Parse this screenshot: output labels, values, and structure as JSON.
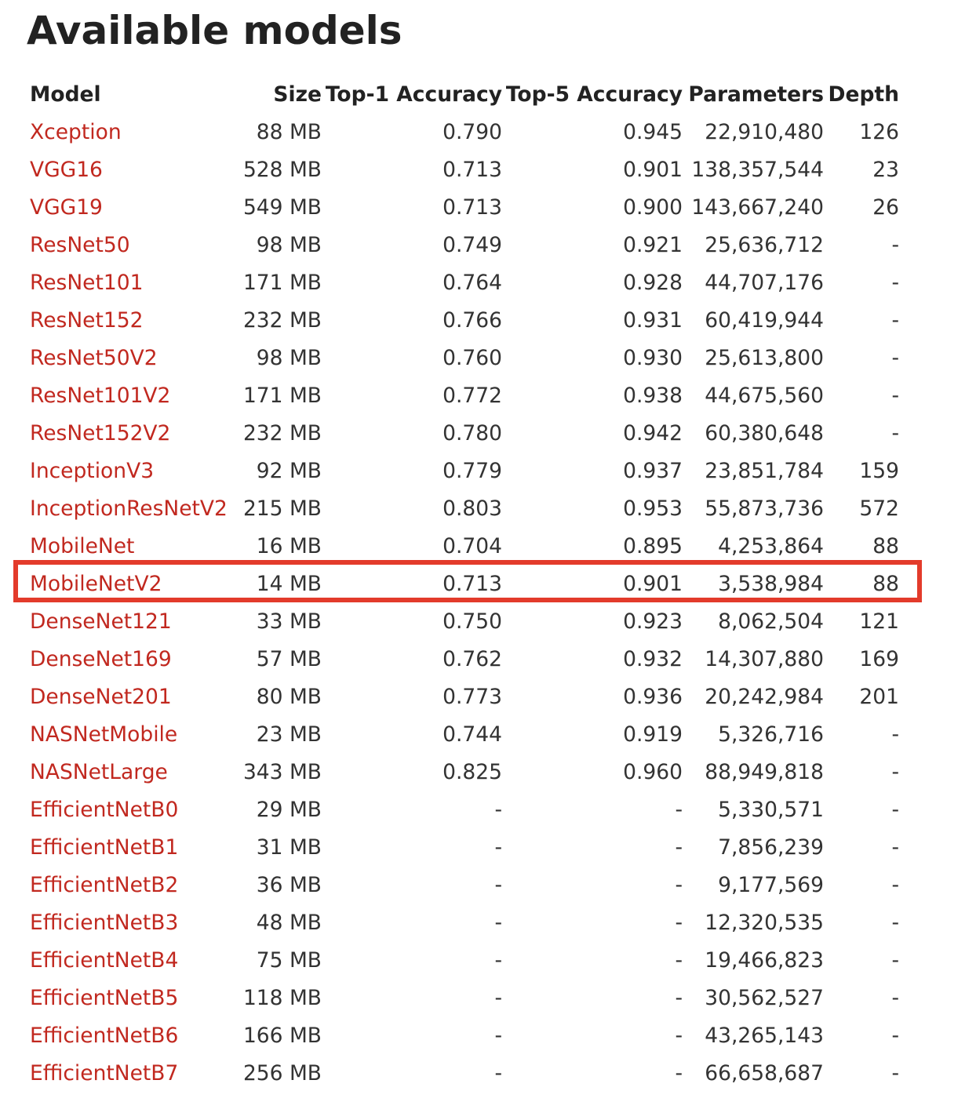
{
  "page": {
    "title": "Available models"
  },
  "table": {
    "headers": {
      "model": "Model",
      "size": "Size",
      "top1": "Top-1 Accuracy",
      "top5": "Top-5 Accuracy",
      "parameters": "Parameters",
      "depth": "Depth"
    },
    "rows": [
      {
        "model": "Xception",
        "size": "88 MB",
        "top1": "0.790",
        "top5": "0.945",
        "parameters": "22,910,480",
        "depth": "126"
      },
      {
        "model": "VGG16",
        "size": "528 MB",
        "top1": "0.713",
        "top5": "0.901",
        "parameters": "138,357,544",
        "depth": "23"
      },
      {
        "model": "VGG19",
        "size": "549 MB",
        "top1": "0.713",
        "top5": "0.900",
        "parameters": "143,667,240",
        "depth": "26"
      },
      {
        "model": "ResNet50",
        "size": "98 MB",
        "top1": "0.749",
        "top5": "0.921",
        "parameters": "25,636,712",
        "depth": "-"
      },
      {
        "model": "ResNet101",
        "size": "171 MB",
        "top1": "0.764",
        "top5": "0.928",
        "parameters": "44,707,176",
        "depth": "-"
      },
      {
        "model": "ResNet152",
        "size": "232 MB",
        "top1": "0.766",
        "top5": "0.931",
        "parameters": "60,419,944",
        "depth": "-"
      },
      {
        "model": "ResNet50V2",
        "size": "98 MB",
        "top1": "0.760",
        "top5": "0.930",
        "parameters": "25,613,800",
        "depth": "-"
      },
      {
        "model": "ResNet101V2",
        "size": "171 MB",
        "top1": "0.772",
        "top5": "0.938",
        "parameters": "44,675,560",
        "depth": "-"
      },
      {
        "model": "ResNet152V2",
        "size": "232 MB",
        "top1": "0.780",
        "top5": "0.942",
        "parameters": "60,380,648",
        "depth": "-"
      },
      {
        "model": "InceptionV3",
        "size": "92 MB",
        "top1": "0.779",
        "top5": "0.937",
        "parameters": "23,851,784",
        "depth": "159"
      },
      {
        "model": "InceptionResNetV2",
        "size": "215 MB",
        "top1": "0.803",
        "top5": "0.953",
        "parameters": "55,873,736",
        "depth": "572"
      },
      {
        "model": "MobileNet",
        "size": "16 MB",
        "top1": "0.704",
        "top5": "0.895",
        "parameters": "4,253,864",
        "depth": "88"
      },
      {
        "model": "MobileNetV2",
        "size": "14 MB",
        "top1": "0.713",
        "top5": "0.901",
        "parameters": "3,538,984",
        "depth": "88"
      },
      {
        "model": "DenseNet121",
        "size": "33 MB",
        "top1": "0.750",
        "top5": "0.923",
        "parameters": "8,062,504",
        "depth": "121"
      },
      {
        "model": "DenseNet169",
        "size": "57 MB",
        "top1": "0.762",
        "top5": "0.932",
        "parameters": "14,307,880",
        "depth": "169"
      },
      {
        "model": "DenseNet201",
        "size": "80 MB",
        "top1": "0.773",
        "top5": "0.936",
        "parameters": "20,242,984",
        "depth": "201"
      },
      {
        "model": "NASNetMobile",
        "size": "23 MB",
        "top1": "0.744",
        "top5": "0.919",
        "parameters": "5,326,716",
        "depth": "-"
      },
      {
        "model": "NASNetLarge",
        "size": "343 MB",
        "top1": "0.825",
        "top5": "0.960",
        "parameters": "88,949,818",
        "depth": "-"
      },
      {
        "model": "EfficientNetB0",
        "size": "29 MB",
        "top1": "-",
        "top5": "-",
        "parameters": "5,330,571",
        "depth": "-"
      },
      {
        "model": "EfficientNetB1",
        "size": "31 MB",
        "top1": "-",
        "top5": "-",
        "parameters": "7,856,239",
        "depth": "-"
      },
      {
        "model": "EfficientNetB2",
        "size": "36 MB",
        "top1": "-",
        "top5": "-",
        "parameters": "9,177,569",
        "depth": "-"
      },
      {
        "model": "EfficientNetB3",
        "size": "48 MB",
        "top1": "-",
        "top5": "-",
        "parameters": "12,320,535",
        "depth": "-"
      },
      {
        "model": "EfficientNetB4",
        "size": "75 MB",
        "top1": "-",
        "top5": "-",
        "parameters": "19,466,823",
        "depth": "-"
      },
      {
        "model": "EfficientNetB5",
        "size": "118 MB",
        "top1": "-",
        "top5": "-",
        "parameters": "30,562,527",
        "depth": "-"
      },
      {
        "model": "EfficientNetB6",
        "size": "166 MB",
        "top1": "-",
        "top5": "-",
        "parameters": "43,265,143",
        "depth": "-"
      },
      {
        "model": "EfficientNetB7",
        "size": "256 MB",
        "top1": "-",
        "top5": "-",
        "parameters": "66,658,687",
        "depth": "-"
      }
    ],
    "highlighted_model": "MobileNetV2"
  },
  "colors": {
    "link": "#c1281f",
    "highlight_border": "#e33b2b",
    "text": "#333333",
    "heading": "#222222"
  }
}
